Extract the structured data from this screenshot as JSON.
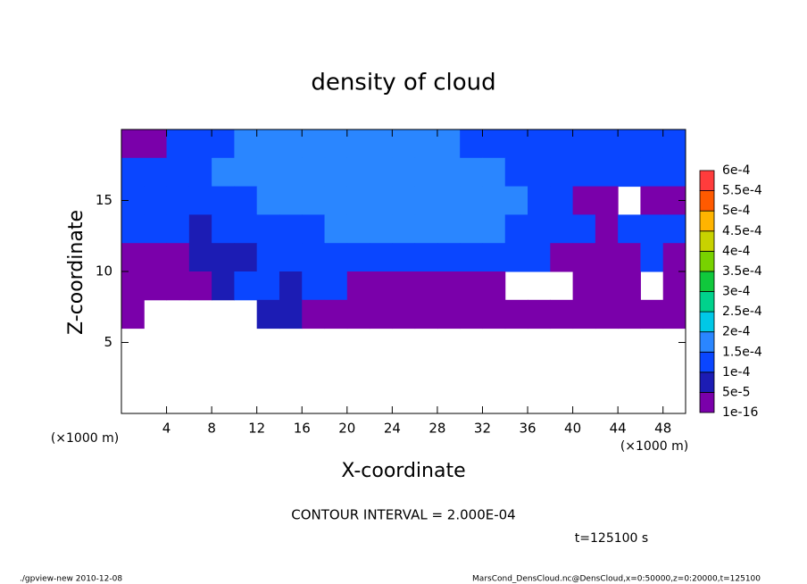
{
  "chart_data": {
    "type": "contour",
    "title": "density of cloud",
    "x_label": "X-coordinate",
    "y_label": "Z-coordinate",
    "x_unit": "(×1000 m)",
    "y_unit": "(×1000 m)",
    "contour_note": "CONTOUR INTERVAL = 2.000E-04",
    "time_label": "t=125100 s",
    "footer_left": "./gpview-new   2010-12-08",
    "footer_right": "MarsCond_DensCloud.nc@DensCloud,x=0:50000,z=0:20000,t=125100",
    "xlim": [
      0,
      50
    ],
    "ylim": [
      0,
      20
    ],
    "xticks": [
      4,
      8,
      12,
      16,
      20,
      24,
      28,
      32,
      36,
      40,
      44,
      48
    ],
    "yticks": [
      5,
      10,
      15
    ],
    "x": [
      1,
      3,
      5,
      7,
      9,
      11,
      13,
      15,
      17,
      19,
      21,
      23,
      25,
      27,
      29,
      31,
      33,
      35,
      37,
      39,
      41,
      43,
      45,
      47,
      49
    ],
    "z": [
      19,
      17,
      15,
      13,
      11,
      9,
      7
    ],
    "values": [
      [
        3e-05,
        3e-05,
        0.00012,
        0.00012,
        0.00012,
        0.00016,
        0.00016,
        0.00016,
        0.00016,
        0.00016,
        0.00016,
        0.00016,
        0.00016,
        0.00016,
        0.00016,
        0.00012,
        0.00012,
        0.00012,
        0.00012,
        0.00012,
        0.00012,
        0.00012,
        0.00012,
        0.00012,
        0.00012
      ],
      [
        0.00012,
        0.00012,
        0.00012,
        0.00012,
        0.00016,
        0.00016,
        0.00016,
        0.00016,
        0.00016,
        0.00016,
        0.00016,
        0.00016,
        0.00016,
        0.00016,
        0.00016,
        0.00016,
        0.00016,
        0.00012,
        0.00012,
        0.00012,
        0.00012,
        0.00012,
        0.00012,
        0.00012,
        0.00012
      ],
      [
        0.00012,
        0.00012,
        0.00012,
        0.00012,
        0.00012,
        0.00012,
        0.00016,
        0.00016,
        0.00016,
        0.00016,
        0.00016,
        0.00016,
        0.00016,
        0.00016,
        0.00016,
        0.00016,
        0.00016,
        0.00016,
        0.00012,
        0.00012,
        3e-05,
        3e-05,
        null,
        3e-05,
        3e-05
      ],
      [
        0.00012,
        0.00012,
        0.00012,
        7e-05,
        0.00012,
        0.00012,
        0.00012,
        0.00012,
        0.00012,
        0.00016,
        0.00016,
        0.00016,
        0.00016,
        0.00016,
        0.00016,
        0.00016,
        0.00016,
        0.00012,
        0.00012,
        0.00012,
        0.00012,
        3e-05,
        0.00012,
        0.00012,
        0.00012
      ],
      [
        3e-05,
        3e-05,
        3e-05,
        7e-05,
        7e-05,
        7e-05,
        0.00012,
        0.00012,
        0.00012,
        0.00012,
        0.00012,
        0.00012,
        0.00012,
        0.00012,
        0.00012,
        0.00012,
        0.00012,
        0.00012,
        0.00012,
        3e-05,
        3e-05,
        3e-05,
        3e-05,
        0.00012,
        3e-05
      ],
      [
        3e-05,
        3e-05,
        3e-05,
        3e-05,
        7e-05,
        0.00012,
        0.00012,
        7e-05,
        0.00012,
        0.00012,
        3e-05,
        3e-05,
        3e-05,
        3e-05,
        3e-05,
        3e-05,
        3e-05,
        null,
        null,
        null,
        3e-05,
        3e-05,
        3e-05,
        null,
        3e-05
      ],
      [
        3e-05,
        null,
        null,
        null,
        null,
        null,
        7e-05,
        7e-05,
        3e-05,
        3e-05,
        3e-05,
        3e-05,
        3e-05,
        3e-05,
        3e-05,
        3e-05,
        3e-05,
        3e-05,
        3e-05,
        3e-05,
        3e-05,
        3e-05,
        3e-05,
        3e-05,
        3e-05
      ]
    ],
    "levels": [
      {
        "value": 1e-16,
        "label": "1e-16"
      },
      {
        "value": 5e-05,
        "label": "5e-5"
      },
      {
        "value": 0.0001,
        "label": "1e-4"
      },
      {
        "value": 0.00015,
        "label": "1.5e-4"
      },
      {
        "value": 0.0002,
        "label": "2e-4"
      },
      {
        "value": 0.00025,
        "label": "2.5e-4"
      },
      {
        "value": 0.0003,
        "label": "3e-4"
      },
      {
        "value": 0.00035,
        "label": "3.5e-4"
      },
      {
        "value": 0.0004,
        "label": "4e-4"
      },
      {
        "value": 0.00045,
        "label": "4.5e-4"
      },
      {
        "value": 0.0005,
        "label": "5e-4"
      },
      {
        "value": 0.00055,
        "label": "5.5e-4"
      },
      {
        "value": 0.0006,
        "label": "6e-4"
      }
    ],
    "colors": [
      "#7a00aa",
      "#1c1cb4",
      "#0a46ff",
      "#2a86ff",
      "#00c8e6",
      "#00d28c",
      "#10c83c",
      "#78d200",
      "#c8d200",
      "#ffb400",
      "#ff5a00",
      "#ff3c3c"
    ]
  }
}
